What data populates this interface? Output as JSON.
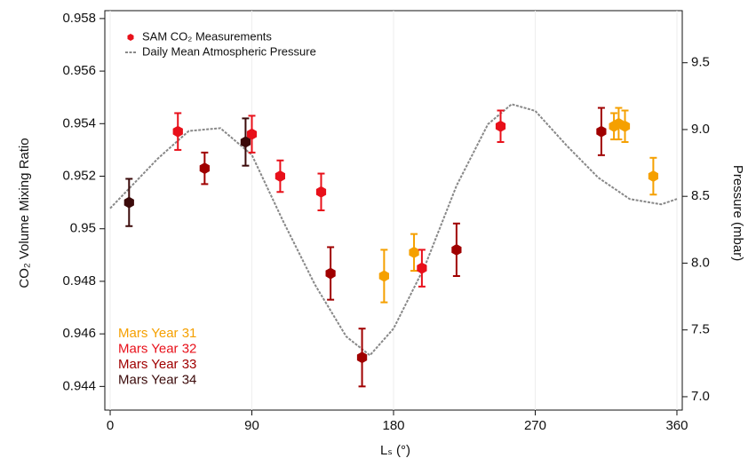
{
  "chart_data": {
    "type": "scatter",
    "xlabel": "Lₛ (°)",
    "ylabel": "CO₂ Volume Mixing Ratio",
    "y2label": "Pressure (mbar)",
    "marker_legend": "SAM CO₂ Measurements",
    "xlim": [
      -3.4,
      363.4
    ],
    "xticks": [
      0,
      90,
      180,
      270,
      360
    ],
    "ylim": [
      0.9431,
      0.9583
    ],
    "yticks": [
      0.944,
      0.946,
      0.948,
      0.95,
      0.952,
      0.954,
      0.956,
      0.958
    ],
    "y2lim": [
      6.9,
      9.89
    ],
    "y2ticks": [
      {
        "value": 7,
        "label": "7.0"
      },
      7.5,
      {
        "value": 8,
        "label": "8.0"
      },
      8.5,
      {
        "value": 9,
        "label": "9.0"
      },
      9.5
    ],
    "series": [
      {
        "name": "Mars Year 31",
        "color": "#f5a000",
        "x": [
          174,
          193,
          320,
          323,
          327,
          345
        ],
        "values": [
          0.9482,
          0.9491,
          0.9539,
          0.954,
          0.9539,
          0.952
        ],
        "errors": [
          0.001,
          0.0007,
          0.0005,
          0.0006,
          0.0006,
          0.0007
        ]
      },
      {
        "name": "Mars Year 32",
        "color": "#e8101a",
        "x": [
          43,
          90,
          108,
          134,
          198,
          248
        ],
        "values": [
          0.9537,
          0.9536,
          0.952,
          0.9514,
          0.9485,
          0.9539
        ],
        "errors": [
          0.0007,
          0.0007,
          0.0006,
          0.0007,
          0.0007,
          0.0006
        ]
      },
      {
        "name": "Mars Year 33",
        "color": "#a00000",
        "x": [
          60,
          140,
          160,
          220,
          312
        ],
        "values": [
          0.9523,
          0.9483,
          0.9451,
          0.9492,
          0.9537
        ],
        "errors": [
          0.0006,
          0.001,
          0.0011,
          0.001,
          0.0009
        ]
      },
      {
        "name": "Mars Year 34",
        "color": "#3b0a0a",
        "x": [
          12,
          86
        ],
        "values": [
          0.951,
          0.9533
        ],
        "errors": [
          0.0009,
          0.0009
        ]
      },
      {
        "name": "Daily Mean Atmospheric Pressure",
        "type": "line",
        "axis": "y2",
        "color": "#888888",
        "x": [
          0,
          30,
          50,
          70,
          90,
          110,
          130,
          150,
          165,
          180,
          200,
          220,
          240,
          255,
          270,
          290,
          310,
          330,
          350,
          360
        ],
        "values": [
          8.41,
          8.78,
          8.99,
          9.01,
          8.81,
          8.31,
          7.84,
          7.45,
          7.31,
          7.51,
          7.98,
          8.58,
          9.04,
          9.19,
          9.14,
          8.88,
          8.64,
          8.48,
          8.44,
          8.48
        ]
      }
    ]
  }
}
